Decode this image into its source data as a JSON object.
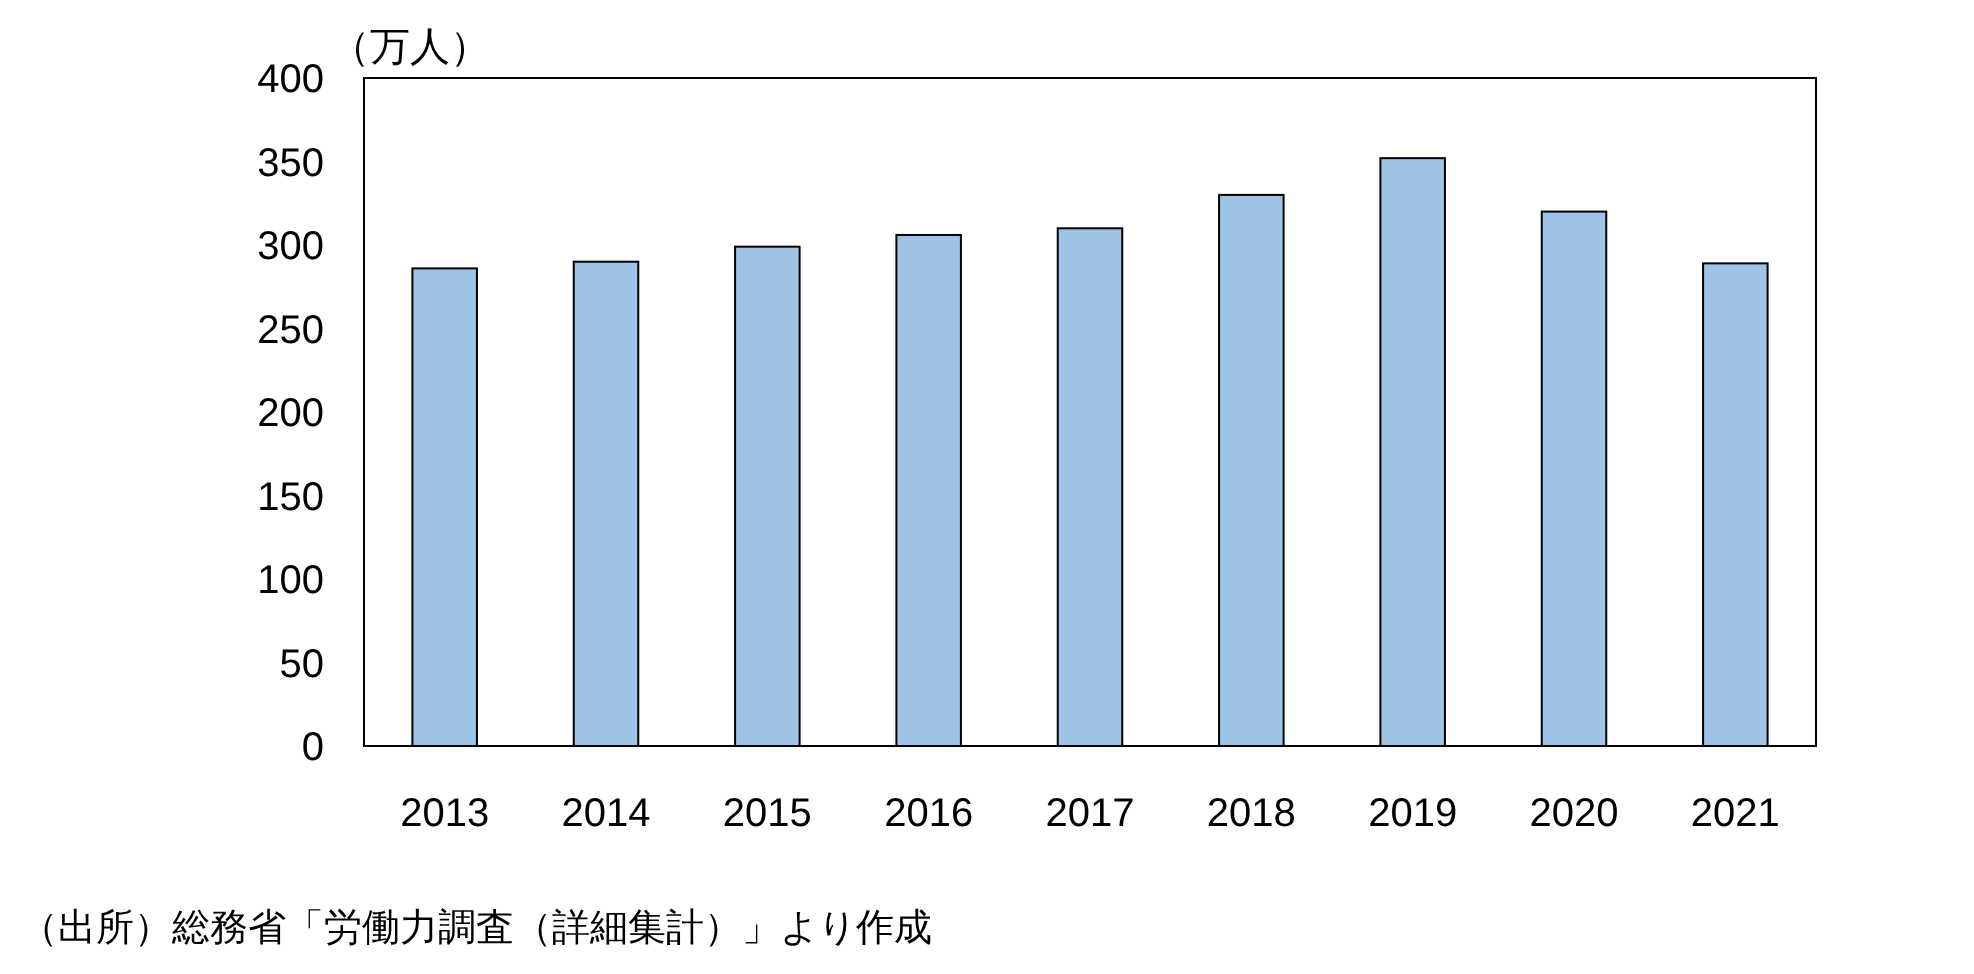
{
  "chart_data": {
    "type": "bar",
    "ylabel": "（万人）",
    "categories": [
      "2013",
      "2014",
      "2015",
      "2016",
      "2017",
      "2018",
      "2019",
      "2020",
      "2021"
    ],
    "values": [
      286,
      290,
      299,
      306,
      310,
      330,
      352,
      320,
      289
    ],
    "color": "#9dc3e6",
    "ylim": [
      0,
      400
    ],
    "yticks": [
      0,
      50,
      100,
      150,
      200,
      250,
      300,
      350,
      400
    ],
    "grid": false,
    "annotations": [
      "（出所）総務省「労働力調査（詳細集計）」より作成"
    ]
  }
}
